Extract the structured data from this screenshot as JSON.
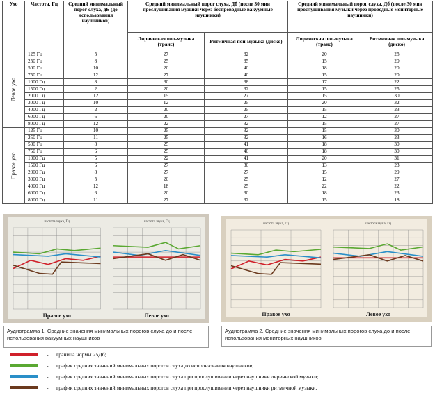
{
  "table": {
    "headers": {
      "ear": "Ухо",
      "freq": "Частота, Гц",
      "before": "Средний минимальный порог слуха, дБ (до использования наушников)",
      "vacuum": "Средний минимальный порог слуха, Дб (после 30 мин прослушивания музыки через беспроводные вакуумные наушники)",
      "monitor": "Средний минимальный порог слуха, Дб (после 30 мин прослушивания музыки через проводные мониторные наушники)",
      "sub": [
        "Лирическая поп-музыка (транс)",
        "Ритмичная поп-музыка (диско)",
        "Лирическая поп-музыка (транс)",
        "Ритмичная поп-музыка (диско)"
      ]
    },
    "groups": [
      {
        "ear": "Левое ухо",
        "rows": [
          [
            "125 Гц",
            5,
            27,
            32,
            20,
            25
          ],
          [
            "250 Гц",
            8,
            25,
            35,
            15,
            20
          ],
          [
            "500 Гц",
            10,
            20,
            40,
            18,
            20
          ],
          [
            "750 Гц",
            12,
            27,
            40,
            15,
            20
          ],
          [
            "1000 Гц",
            8,
            30,
            38,
            17,
            22
          ],
          [
            "1500 Гц",
            2,
            20,
            32,
            15,
            25
          ],
          [
            "2000 Гц",
            12,
            15,
            27,
            15,
            30
          ],
          [
            "3000 Гц",
            10,
            12,
            25,
            20,
            32
          ],
          [
            "4000 Гц",
            2,
            20,
            25,
            15,
            23
          ],
          [
            "6000 Гц",
            6,
            20,
            27,
            12,
            27
          ],
          [
            "8000 Гц",
            12,
            22,
            32,
            15,
            27
          ]
        ]
      },
      {
        "ear": "Правое ухо",
        "rows": [
          [
            "125 Гц",
            10,
            25,
            32,
            15,
            30
          ],
          [
            "250 Гц",
            11,
            25,
            32,
            16,
            23
          ],
          [
            "500 Гц",
            8,
            25,
            41,
            18,
            30
          ],
          [
            "750 Гц",
            6,
            25,
            40,
            18,
            30
          ],
          [
            "1000 Гц",
            5,
            22,
            41,
            20,
            31
          ],
          [
            "1500 Гц",
            6,
            27,
            30,
            13,
            23
          ],
          [
            "2000 Гц",
            8,
            27,
            27,
            15,
            29
          ],
          [
            "3000 Гц",
            5,
            20,
            25,
            12,
            27
          ],
          [
            "4000 Гц",
            12,
            18,
            25,
            22,
            22
          ],
          [
            "6000 Гц",
            6,
            20,
            30,
            18,
            23
          ],
          [
            "8000 Гц",
            11,
            27,
            32,
            15,
            18
          ]
        ]
      }
    ]
  },
  "figures": [
    {
      "axis": "частота звука, Гц",
      "right": "Правое ухо",
      "left": "Левое ухо",
      "caption": "Аудиограмма 1. Средние значения минимальных порогов слуха до и после использования вакуумных наушников"
    },
    {
      "axis": "частота звука, Гц",
      "right": "Правое ухо",
      "left": "Левое ухо",
      "caption": "Аудиограмма 2. Средние значения минимальных порогов слуха до и после использования мониторных наушников"
    }
  ],
  "legend": {
    "dash": "-",
    "items": [
      {
        "color": "#d0202a",
        "text": "граница нормы 25Дб;"
      },
      {
        "color": "#5aa832",
        "text": "график средних значений минимальных порогов слуха до использования наушников;"
      },
      {
        "color": "#2a8fc8",
        "text": "график средних значений минимальных порогов слуха при прослушивании через наушники лирической музыки;"
      },
      {
        "color": "#6b3a1e",
        "text": "график средних значений минимальных порогов слуха при прослушивании через наушники ритмичной музыки."
      }
    ]
  }
}
